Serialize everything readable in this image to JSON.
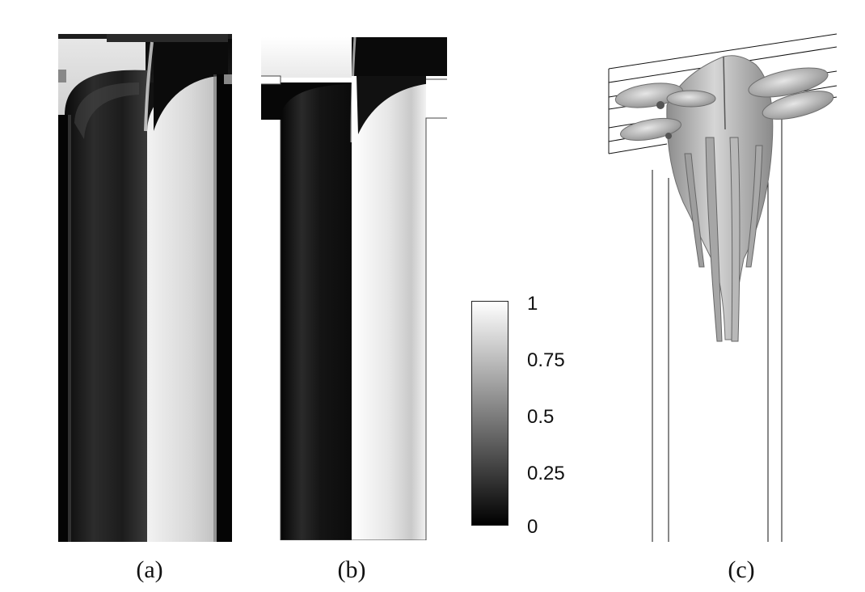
{
  "figure": {
    "panels": [
      {
        "id": "a",
        "label": "(a)",
        "kind": "experimental-photograph"
      },
      {
        "id": "b",
        "label": "(b)",
        "kind": "simulated-concentration-field"
      },
      {
        "id": "c",
        "label": "(c)",
        "kind": "3d-isosurface-render"
      }
    ],
    "colorbar": {
      "ticks": [
        "1",
        "0.75",
        "0.5",
        "0.25",
        "0"
      ],
      "tick_values": [
        1,
        0.75,
        0.5,
        0.25,
        0
      ],
      "range": [
        0,
        1
      ],
      "colormap": "grayscale",
      "colors": {
        "low": "#000000",
        "high": "#ffffff"
      }
    }
  }
}
